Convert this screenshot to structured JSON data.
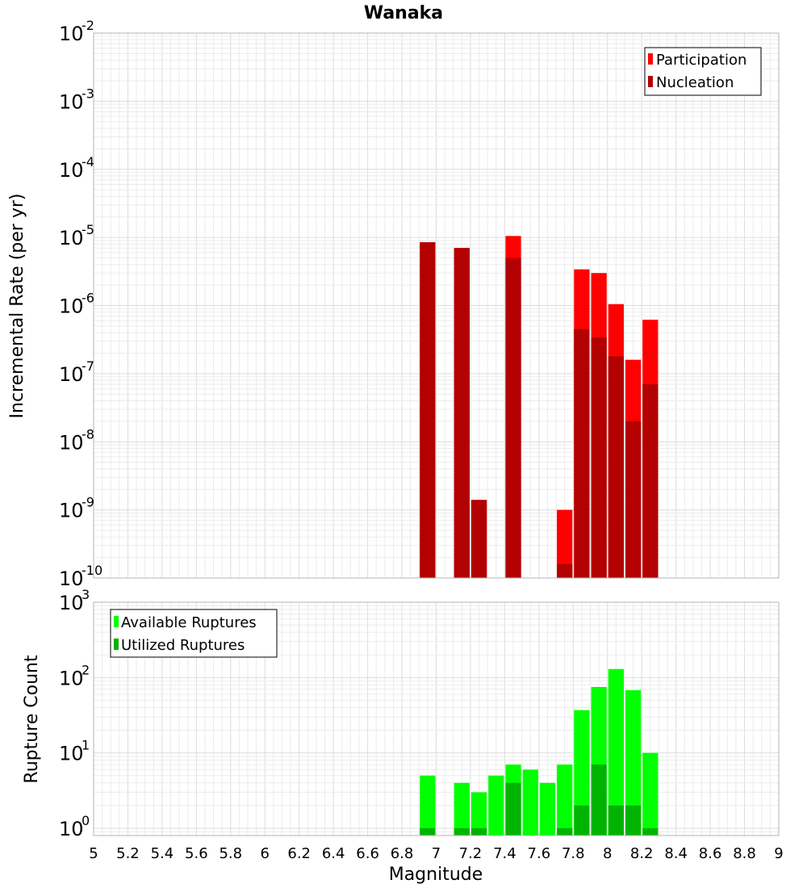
{
  "chart_data": [
    {
      "type": "bar",
      "title": "Wanaka",
      "xlabel": "",
      "ylabel": "Incremental Rate (per yr)",
      "xlim": [
        5,
        9
      ],
      "ylim": [
        1e-10,
        0.01
      ],
      "yscale": "log",
      "grid": true,
      "legend_position": "top-right",
      "x": [
        6.95,
        7.15,
        7.25,
        7.45,
        7.75,
        7.85,
        7.95,
        8.05,
        8.15,
        8.25
      ],
      "series": [
        {
          "name": "Participation",
          "color": "#ff0000",
          "values": [
            8.5e-06,
            7e-06,
            1.4e-09,
            1.05e-05,
            1e-09,
            3.4e-06,
            3e-06,
            1.05e-06,
            1.6e-07,
            6.2e-07
          ]
        },
        {
          "name": "Nucleation",
          "color": "#b30000",
          "values": [
            8.5e-06,
            7e-06,
            1.4e-09,
            5e-06,
            1.6e-10,
            4.5e-07,
            3.4e-07,
            1.8e-07,
            2e-08,
            7e-08
          ]
        }
      ],
      "yticks": [
        {
          "base": "10",
          "exp": "-10"
        },
        {
          "base": "10",
          "exp": "-9"
        },
        {
          "base": "10",
          "exp": "-8"
        },
        {
          "base": "10",
          "exp": "-7"
        },
        {
          "base": "10",
          "exp": "-6"
        },
        {
          "base": "10",
          "exp": "-5"
        },
        {
          "base": "10",
          "exp": "-4"
        },
        {
          "base": "10",
          "exp": "-3"
        },
        {
          "base": "10",
          "exp": "-2"
        }
      ]
    },
    {
      "type": "bar",
      "title": "",
      "xlabel": "Magnitude",
      "ylabel": "Rupture Count",
      "xlim": [
        5,
        9
      ],
      "ylim": [
        0.8,
        1000
      ],
      "yscale": "log",
      "grid": true,
      "legend_position": "top-left",
      "x": [
        6.95,
        7.15,
        7.25,
        7.35,
        7.45,
        7.55,
        7.65,
        7.75,
        7.85,
        7.95,
        8.05,
        8.15,
        8.25
      ],
      "series": [
        {
          "name": "Available Ruptures",
          "color": "#00ff00",
          "values": [
            5,
            4,
            3,
            5,
            7,
            6,
            4,
            7,
            37,
            75,
            130,
            68,
            10
          ]
        },
        {
          "name": "Utilized Ruptures",
          "color": "#00b300",
          "values": [
            1,
            1,
            1,
            null,
            4,
            null,
            null,
            1,
            2,
            7,
            2,
            2,
            1
          ]
        }
      ],
      "xticks": [
        "5",
        "5.2",
        "5.4",
        "5.6",
        "5.8",
        "6",
        "6.2",
        "6.4",
        "6.6",
        "6.8",
        "7",
        "7.2",
        "7.4",
        "7.6",
        "7.8",
        "8",
        "8.2",
        "8.4",
        "8.6",
        "8.8",
        "9"
      ],
      "yticks": [
        {
          "base": "10",
          "exp": "0"
        },
        {
          "base": "10",
          "exp": "1"
        },
        {
          "base": "10",
          "exp": "2"
        },
        {
          "base": "10",
          "exp": "3"
        }
      ]
    }
  ]
}
